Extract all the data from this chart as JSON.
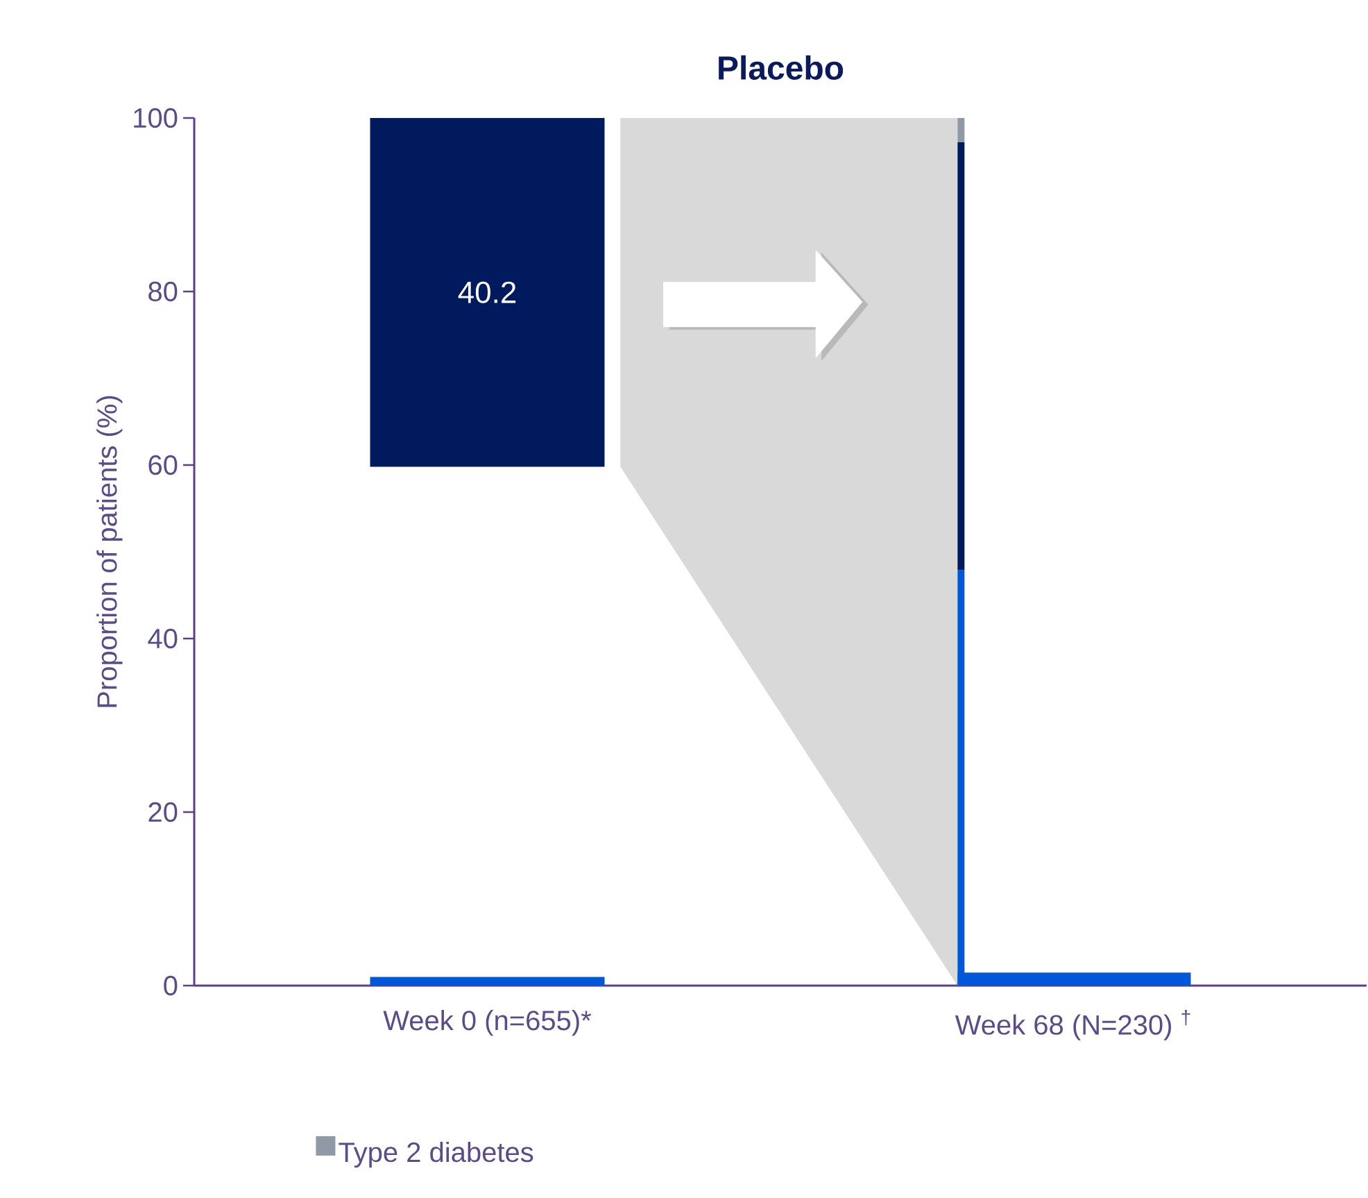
{
  "chart_data": {
    "type": "bar",
    "title": "Placebo",
    "ylabel": "Proportion of patients (%)",
    "categories": [
      "Week 0 (n=655)*",
      "Week 68 (N=230)  $^{†}$"
    ],
    "ylim": [
      0,
      100
    ],
    "yticks": [
      0,
      20,
      40,
      60,
      80,
      100
    ],
    "legend": "bottom",
    "series": [
      {
        "color": "#0057d8",
        "values": [
          null,
          47.9
        ],
        "base": [
          null,
          0
        ]
      },
      {
        "color": "#001a5e",
        "values": [
          null,
          49.3
        ],
        "base": [
          null,
          47.9
        ]
      },
      {
        "name": "Type 2 diabetes",
        "color": "#9099a5",
        "values": [
          null,
          2.8
        ],
        "base": [
          null,
          97.2
        ]
      },
      {
        "color": "#0057d8",
        "values": [
          1.0,
          1.5
        ],
        "base": [
          0,
          0
        ]
      },
      {
        "color": "#001a5e",
        "values": [
          40.2,
          null
        ],
        "base": [
          59.8,
          null
        ],
        "value_labels": [
          "40.2",
          null
        ]
      }
    ]
  }
}
